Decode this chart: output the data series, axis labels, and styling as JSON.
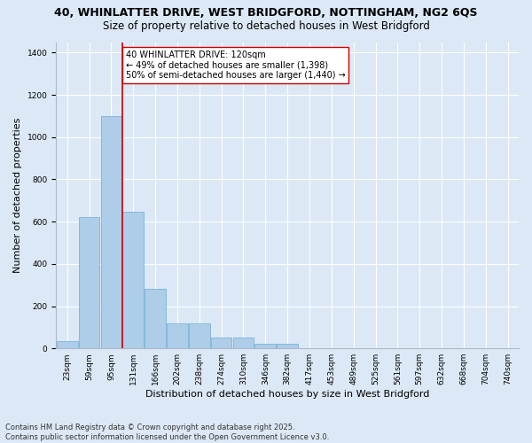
{
  "title_line1": "40, WHINLATTER DRIVE, WEST BRIDGFORD, NOTTINGHAM, NG2 6QS",
  "title_line2": "Size of property relative to detached houses in West Bridgford",
  "xlabel": "Distribution of detached houses by size in West Bridgford",
  "ylabel": "Number of detached properties",
  "categories": [
    "23sqm",
    "59sqm",
    "95sqm",
    "131sqm",
    "166sqm",
    "202sqm",
    "238sqm",
    "274sqm",
    "310sqm",
    "346sqm",
    "382sqm",
    "417sqm",
    "453sqm",
    "489sqm",
    "525sqm",
    "561sqm",
    "597sqm",
    "632sqm",
    "668sqm",
    "704sqm",
    "740sqm"
  ],
  "values": [
    35,
    620,
    1100,
    645,
    280,
    120,
    120,
    50,
    50,
    20,
    20,
    0,
    0,
    0,
    0,
    0,
    0,
    0,
    0,
    0,
    0
  ],
  "bar_color": "#aecde8",
  "bar_edge_color": "#6aadd5",
  "vline_color": "#cc0000",
  "vline_x_index": 2.5,
  "annotation_text": "40 WHINLATTER DRIVE: 120sqm\n← 49% of detached houses are smaller (1,398)\n50% of semi-detached houses are larger (1,440) →",
  "annotation_box_facecolor": "white",
  "annotation_box_edgecolor": "#cc0000",
  "ylim": [
    0,
    1450
  ],
  "yticks": [
    0,
    200,
    400,
    600,
    800,
    1000,
    1200,
    1400
  ],
  "plot_bg_color": "#dce8f5",
  "fig_bg_color": "#dce8f5",
  "grid_color": "white",
  "footer_text": "Contains HM Land Registry data © Crown copyright and database right 2025.\nContains public sector information licensed under the Open Government Licence v3.0.",
  "title1_fontsize": 9,
  "title2_fontsize": 8.5,
  "ylabel_fontsize": 8,
  "xlabel_fontsize": 8,
  "tick_fontsize": 6.5,
  "annotation_fontsize": 7,
  "footer_fontsize": 6
}
